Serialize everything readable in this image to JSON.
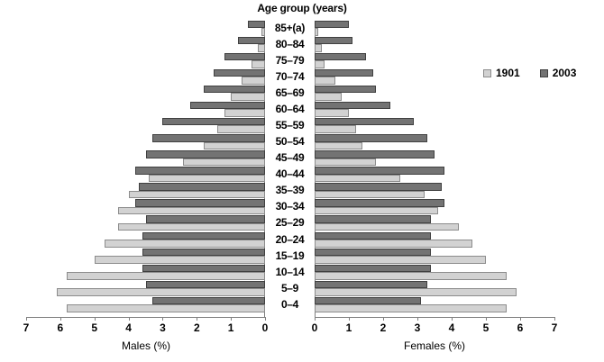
{
  "title": "Age group (years)",
  "legend": {
    "items": [
      {
        "label": "1901",
        "key": "1901"
      },
      {
        "label": "2003",
        "key": "2003"
      }
    ]
  },
  "axes": {
    "left_title": "Males (%)",
    "right_title": "Females (%)",
    "left_ticks": [
      "7",
      "6",
      "5",
      "4",
      "3",
      "2",
      "1",
      "0"
    ],
    "right_ticks": [
      "0",
      "1",
      "2",
      "3",
      "4",
      "5",
      "6",
      "7"
    ],
    "max_percent": 7
  },
  "colors": {
    "bar_1901_fill": "#d2d2d2",
    "bar_1901_border": "#8c8c8c",
    "bar_2003_fill": "#737373",
    "bar_2003_border": "#404040",
    "axis_line": "#7f7f7f",
    "text": "#000000",
    "background": "#ffffff"
  },
  "chart_data": {
    "type": "bar",
    "subtype": "population-pyramid",
    "title": "Age group (years)",
    "unit": "percent of population",
    "xlim": [
      0,
      7
    ],
    "grid": false,
    "legend_position": "right",
    "xlabel_left": "Males (%)",
    "xlabel_right": "Females (%)",
    "ylabel": "Age group (years)",
    "legend_entries": [
      "1901",
      "2003"
    ],
    "categories": [
      "85+(a)",
      "80–84",
      "75–79",
      "70–74",
      "65–69",
      "60–64",
      "55–59",
      "50–54",
      "45–49",
      "40–44",
      "35–39",
      "30–34",
      "25–29",
      "20–24",
      "15–19",
      "10–14",
      "5–9",
      "0–4"
    ],
    "series": [
      {
        "name": "Males 1901",
        "side": "left",
        "year": "1901",
        "values": [
          0.1,
          0.2,
          0.4,
          0.7,
          1.0,
          1.2,
          1.4,
          1.8,
          2.4,
          3.4,
          4.0,
          4.3,
          4.3,
          4.7,
          5.0,
          5.8,
          6.1,
          5.8
        ]
      },
      {
        "name": "Males 2003",
        "side": "left",
        "year": "2003",
        "values": [
          0.5,
          0.8,
          1.2,
          1.5,
          1.8,
          2.2,
          3.0,
          3.3,
          3.5,
          3.8,
          3.7,
          3.8,
          3.5,
          3.6,
          3.6,
          3.6,
          3.5,
          3.3
        ]
      },
      {
        "name": "Females 1901",
        "side": "right",
        "year": "1901",
        "values": [
          0.1,
          0.2,
          0.3,
          0.6,
          0.8,
          1.0,
          1.2,
          1.4,
          1.8,
          2.5,
          3.2,
          3.6,
          4.2,
          4.6,
          5.0,
          5.6,
          5.9,
          5.6
        ]
      },
      {
        "name": "Females 2003",
        "side": "right",
        "year": "2003",
        "values": [
          1.0,
          1.1,
          1.5,
          1.7,
          1.8,
          2.2,
          2.9,
          3.3,
          3.5,
          3.8,
          3.7,
          3.8,
          3.4,
          3.4,
          3.4,
          3.4,
          3.3,
          3.1
        ]
      }
    ]
  }
}
